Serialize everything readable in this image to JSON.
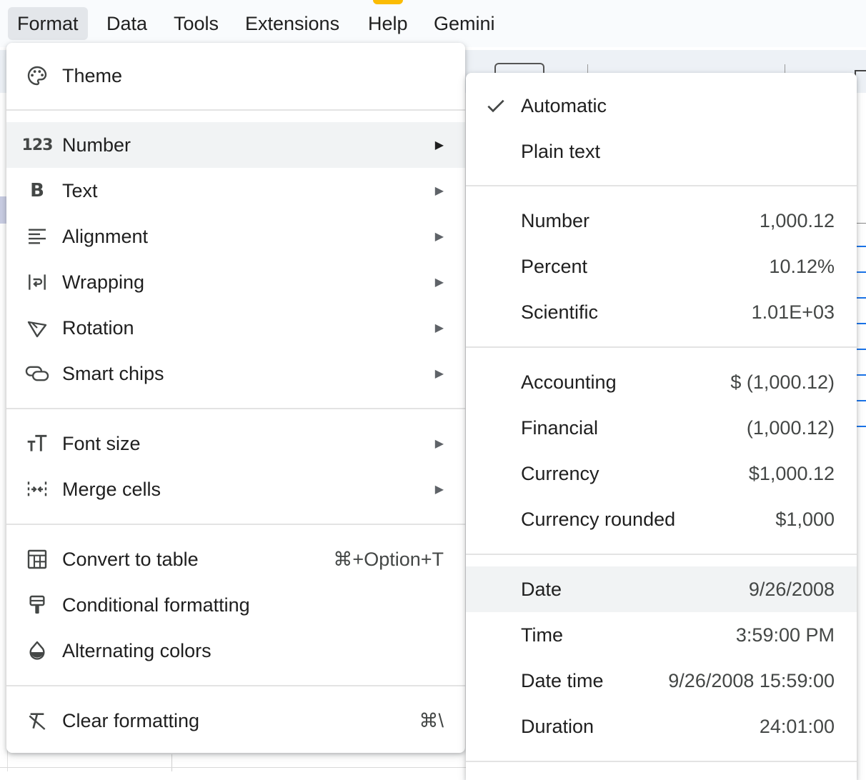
{
  "menubar": {
    "items": [
      "Format",
      "Data",
      "Tools",
      "Extensions",
      "Help",
      "Gemini"
    ],
    "active": "Format"
  },
  "format_menu": {
    "theme": "Theme",
    "number": "Number",
    "text": "Text",
    "alignment": "Alignment",
    "wrapping": "Wrapping",
    "rotation": "Rotation",
    "smart_chips": "Smart chips",
    "font_size": "Font size",
    "merge_cells": "Merge cells",
    "convert_to_table": "Convert to table",
    "convert_to_table_shortcut": "⌘+Option+T",
    "conditional_formatting": "Conditional formatting",
    "alternating_colors": "Alternating colors",
    "clear_formatting": "Clear formatting",
    "clear_formatting_shortcut": "⌘\\",
    "highlighted": "Number"
  },
  "number_menu": {
    "selected": "Automatic",
    "items": [
      {
        "label": "Automatic",
        "value": ""
      },
      {
        "label": "Plain text",
        "value": ""
      },
      {
        "label": "Number",
        "value": "1,000.12"
      },
      {
        "label": "Percent",
        "value": "10.12%"
      },
      {
        "label": "Scientific",
        "value": "1.01E+03"
      },
      {
        "label": "Accounting",
        "value": "$ (1,000.12)"
      },
      {
        "label": "Financial",
        "value": "(1,000.12)"
      },
      {
        "label": "Currency",
        "value": "$1,000.12"
      },
      {
        "label": "Currency rounded",
        "value": "$1,000"
      },
      {
        "label": "Date",
        "value": "9/26/2008"
      },
      {
        "label": "Time",
        "value": "3:59:00 PM"
      },
      {
        "label": "Date time",
        "value": "9/26/2008 15:59:00"
      },
      {
        "label": "Duration",
        "value": "24:01:00"
      }
    ],
    "highlighted": "Date"
  },
  "colors": {
    "menu_bg": "#ffffff",
    "highlight": "#f1f3f4",
    "text": "#1f1f1f",
    "secondary_text": "#444746",
    "link": "#1a73e8",
    "menubar_bg": "#f9fbfd"
  }
}
